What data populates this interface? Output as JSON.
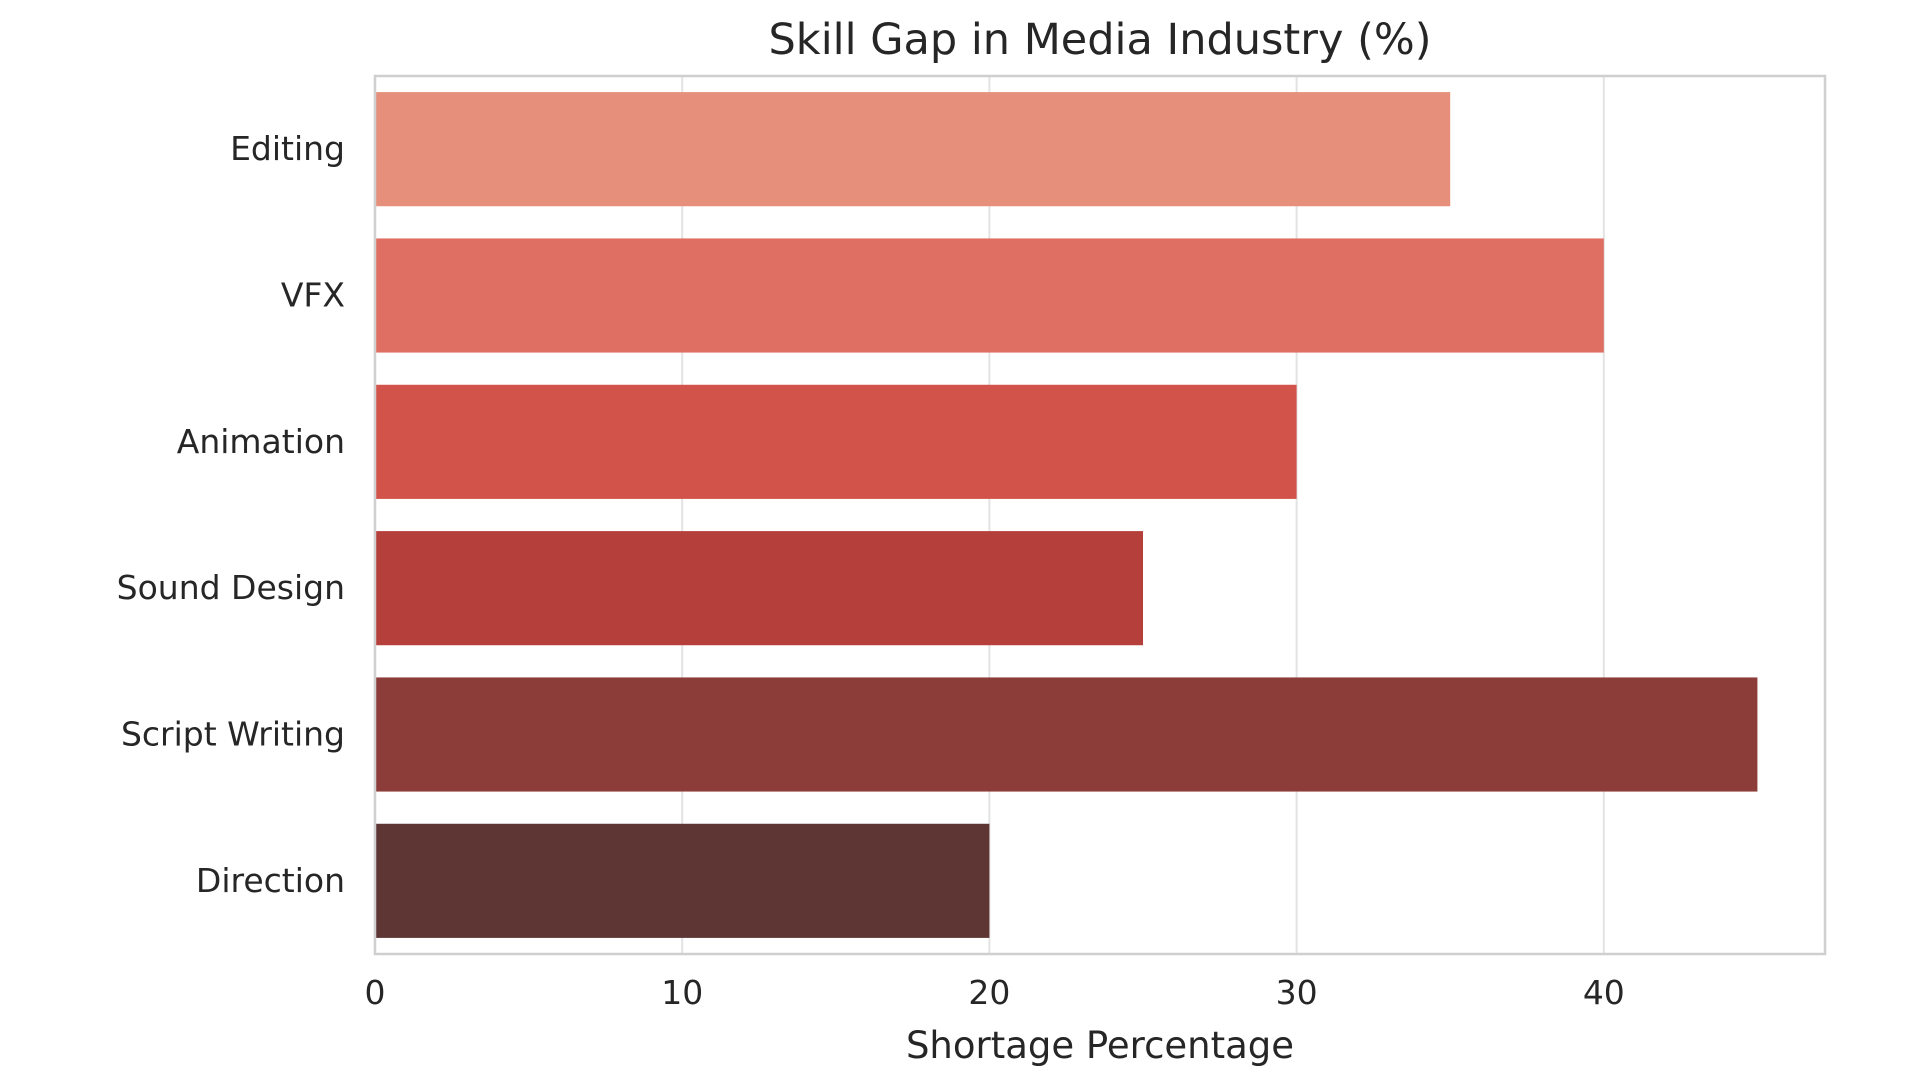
{
  "chart_data": {
    "type": "bar",
    "orientation": "horizontal",
    "title": "Skill Gap in Media Industry (%)",
    "xlabel": "Shortage Percentage",
    "ylabel": "",
    "categories": [
      "Editing",
      "VFX",
      "Animation",
      "Sound Design",
      "Script Writing",
      "Direction"
    ],
    "values": [
      35,
      40,
      30,
      25,
      45,
      20
    ],
    "colors": [
      "#e68f7b",
      "#df6f63",
      "#d2534a",
      "#b53f3b",
      "#8c3d3a",
      "#5e3735"
    ],
    "xlim": [
      0,
      47.2
    ],
    "xticks": [
      0,
      10,
      20,
      30,
      40
    ],
    "grid": true,
    "legend": "none"
  }
}
